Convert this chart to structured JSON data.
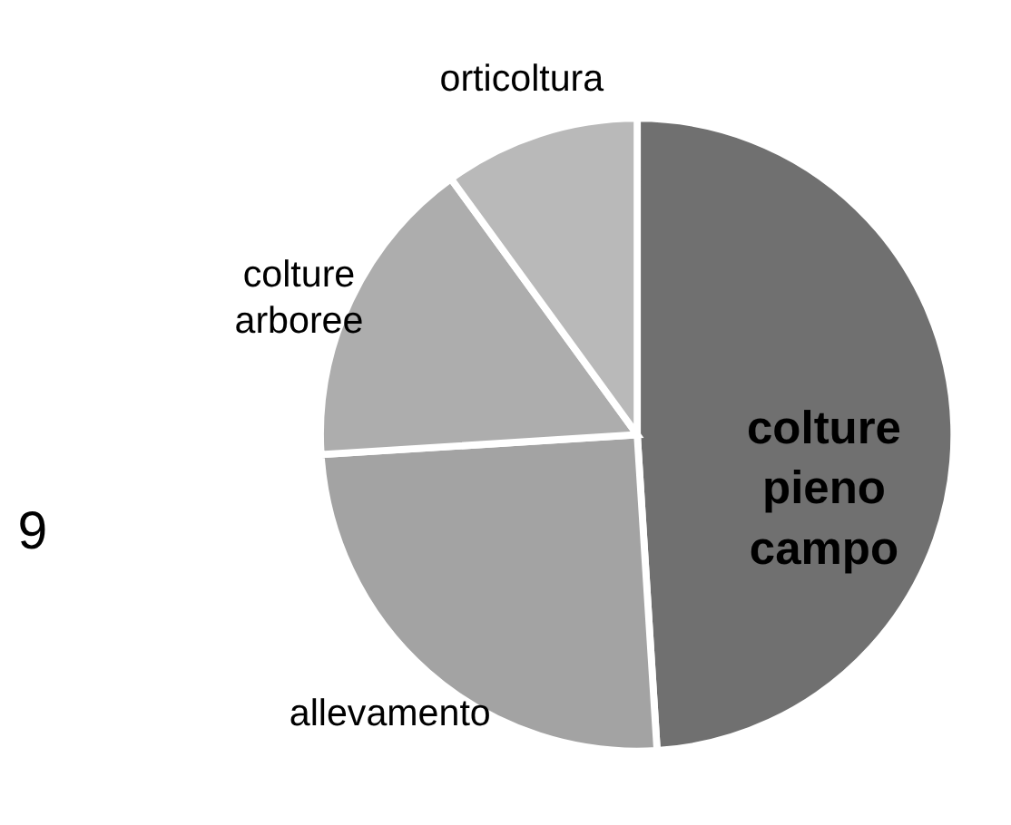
{
  "chart_data": {
    "type": "pie",
    "categories": [
      "colture pieno campo",
      "allevamento",
      "colture arboree",
      "orticoltura"
    ],
    "values": [
      49,
      25,
      16,
      10
    ],
    "colors": [
      "#707070",
      "#a3a3a3",
      "#adadad",
      "#b9b9b9"
    ],
    "annotations": [
      "9"
    ],
    "legend": false
  }
}
